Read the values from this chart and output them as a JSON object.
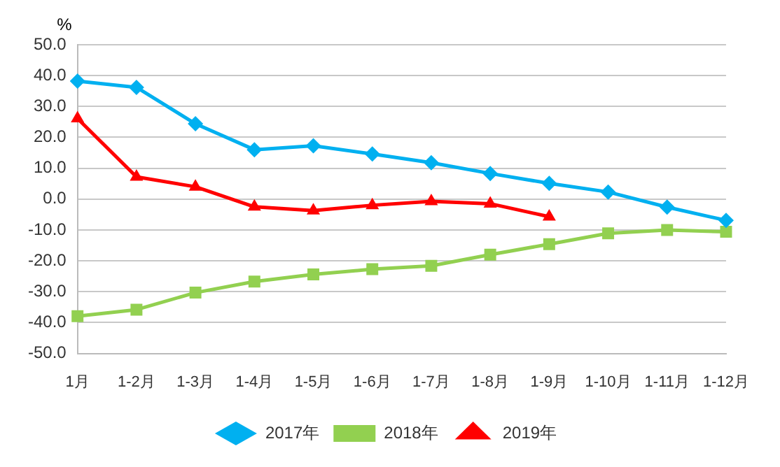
{
  "chart_data": {
    "type": "line",
    "ylabel": "%",
    "categories": [
      "1月",
      "1-2月",
      "1-3月",
      "1-4月",
      "1-5月",
      "1-6月",
      "1-7月",
      "1-8月",
      "1-9月",
      "1-10月",
      "1-11月",
      "1-12月"
    ],
    "series": [
      {
        "name": "2017年",
        "color": "#00b0f0",
        "marker": "diamond",
        "values": [
          38.2,
          36.2,
          24.4,
          16.0,
          17.3,
          14.6,
          11.8,
          8.3,
          5.1,
          2.3,
          -2.6,
          -6.9
        ]
      },
      {
        "name": "2018年",
        "color": "#92d050",
        "marker": "square",
        "values": [
          -37.9,
          -35.8,
          -30.3,
          -26.7,
          -24.4,
          -22.7,
          -21.6,
          -18.0,
          -14.6,
          -11.1,
          -10.0,
          -10.6
        ]
      },
      {
        "name": "2019年",
        "color": "#ff0000",
        "marker": "triangle",
        "values": [
          26.1,
          7.2,
          4.0,
          -2.5,
          -3.7,
          -2.0,
          -0.7,
          -1.5,
          -5.7,
          null,
          null,
          null
        ]
      }
    ],
    "ylim": [
      -50,
      50
    ],
    "yticks": [
      {
        "value": -50,
        "label": "-50.0"
      },
      {
        "value": -40,
        "label": "-40.0"
      },
      {
        "value": -30,
        "label": "-30.0"
      },
      {
        "value": -20,
        "label": "-20.0"
      },
      {
        "value": -10,
        "label": "-10.0"
      },
      {
        "value": 0,
        "label": "0.0"
      },
      {
        "value": 10,
        "label": "10.0"
      },
      {
        "value": 20,
        "label": "20.0"
      },
      {
        "value": 30,
        "label": "30.0"
      },
      {
        "value": 40,
        "label": "40.0"
      },
      {
        "value": 50,
        "label": "50.0"
      }
    ],
    "grid": "y",
    "legend": "bottom"
  }
}
